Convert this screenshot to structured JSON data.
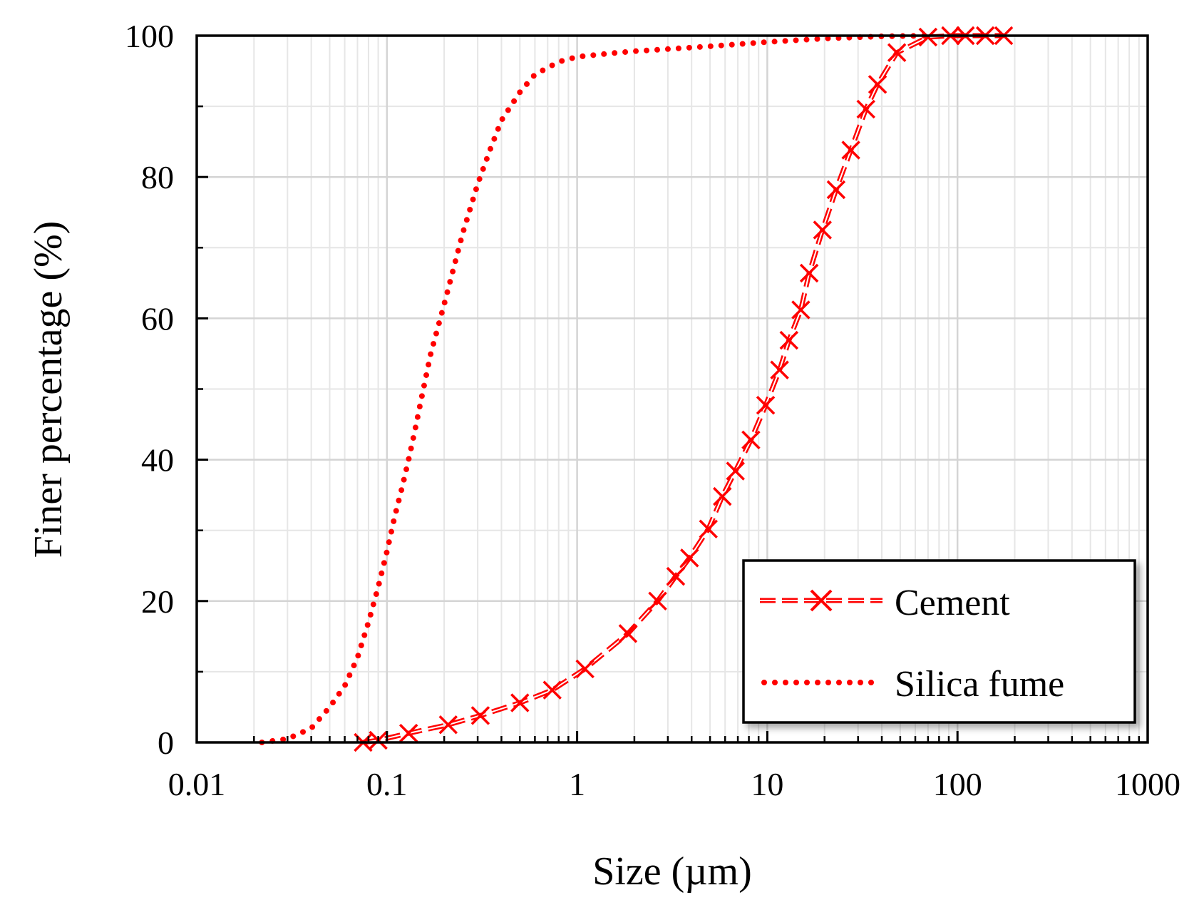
{
  "chart_data": {
    "type": "line",
    "x_scale": "log",
    "xlabel": "Size (µm)",
    "ylabel": "Finer percentage (%)",
    "xlim": [
      0.01,
      1000
    ],
    "ylim": [
      0,
      100
    ],
    "x_ticks": [
      0.01,
      0.1,
      1,
      10,
      100,
      1000
    ],
    "x_tick_labels": [
      "0.01",
      "0.1",
      "1",
      "10",
      "100",
      "1000"
    ],
    "y_ticks": [
      0,
      20,
      40,
      60,
      80,
      100
    ],
    "y_tick_labels": [
      "0",
      "20",
      "40",
      "60",
      "80",
      "100"
    ],
    "grid": true,
    "legend_position": "bottom-right",
    "colors": {
      "series": "#ff0000",
      "axis": "#000000",
      "grid": "#d4d4d4"
    },
    "series": [
      {
        "name": "Cement",
        "style": "dashed-x-marker",
        "x": [
          0.075,
          0.09,
          0.13,
          0.21,
          0.31,
          0.5,
          0.74,
          1.1,
          1.85,
          2.65,
          3.3,
          3.9,
          4.9,
          5.8,
          6.8,
          8.2,
          9.8,
          11.6,
          13.0,
          15.0,
          16.6,
          19.5,
          23.0,
          27.5,
          33.0,
          38.0,
          48.0,
          70.0,
          92.0,
          110.0,
          140.0,
          175.0
        ],
        "y": [
          0,
          0.3,
          1.3,
          2.5,
          3.8,
          5.6,
          7.4,
          10.4,
          15.4,
          20.0,
          23.5,
          26.1,
          30.2,
          34.8,
          38.4,
          42.8,
          47.7,
          52.7,
          56.9,
          61.2,
          66.4,
          72.5,
          78.2,
          83.8,
          89.6,
          93.1,
          97.6,
          99.8,
          100,
          100,
          100,
          100
        ]
      },
      {
        "name": "Silica fume",
        "style": "dotted",
        "x": [
          0.022,
          0.03,
          0.04,
          0.05,
          0.06,
          0.07,
          0.08,
          0.09,
          0.1,
          0.11,
          0.12,
          0.13,
          0.14,
          0.15,
          0.17,
          0.2,
          0.25,
          0.3,
          0.35,
          0.4,
          0.5,
          0.6,
          0.8,
          1.0,
          1.5,
          2.0,
          3.0,
          5.0,
          10.0,
          20.0,
          40.0,
          70.0
        ],
        "y": [
          0,
          0.5,
          2,
          5,
          8,
          12,
          17,
          22,
          27,
          32,
          36,
          40,
          44,
          48,
          55,
          62,
          72,
          79,
          84,
          88,
          92,
          94.5,
          96.3,
          97,
          97.5,
          97.8,
          98.1,
          98.5,
          99.1,
          99.6,
          99.9,
          100
        ]
      }
    ]
  }
}
